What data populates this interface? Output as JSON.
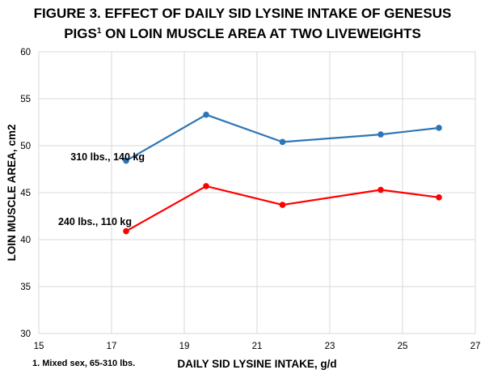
{
  "chart_data": {
    "type": "line",
    "title_line1": "FIGURE 3. EFFECT OF DAILY SID LYSINE INTAKE OF GENESUS",
    "title_line2_pre": "PIGS",
    "title_line2_sup": "1",
    "title_line2_post": " ON LOIN MUSCLE AREA AT TWO LIVEWEIGHTS",
    "xlabel": "DAILY SID LYSINE INTAKE, g/d",
    "ylabel": "LOIN MUSCLE AREA, cm2",
    "xlim": [
      15,
      27
    ],
    "ylim": [
      30,
      60
    ],
    "x_ticks": [
      "15",
      "17",
      "19",
      "21",
      "23",
      "25",
      "27"
    ],
    "y_ticks": [
      "30",
      "35",
      "40",
      "45",
      "50",
      "55",
      "60"
    ],
    "grid": true,
    "footnote": "1. Mixed sex, 65-310 lbs.",
    "series": [
      {
        "name": "310 lbs., 140 kg",
        "color": "#2e75b6",
        "x": [
          17.4,
          19.6,
          21.7,
          24.4,
          26.0
        ],
        "y": [
          48.4,
          53.3,
          50.4,
          51.2,
          51.9
        ]
      },
      {
        "name": "240 lbs., 110 kg",
        "color": "#ff0000",
        "x": [
          17.4,
          19.6,
          21.7,
          24.4,
          26.0
        ],
        "y": [
          40.9,
          45.7,
          43.7,
          45.3,
          44.5
        ]
      }
    ]
  }
}
